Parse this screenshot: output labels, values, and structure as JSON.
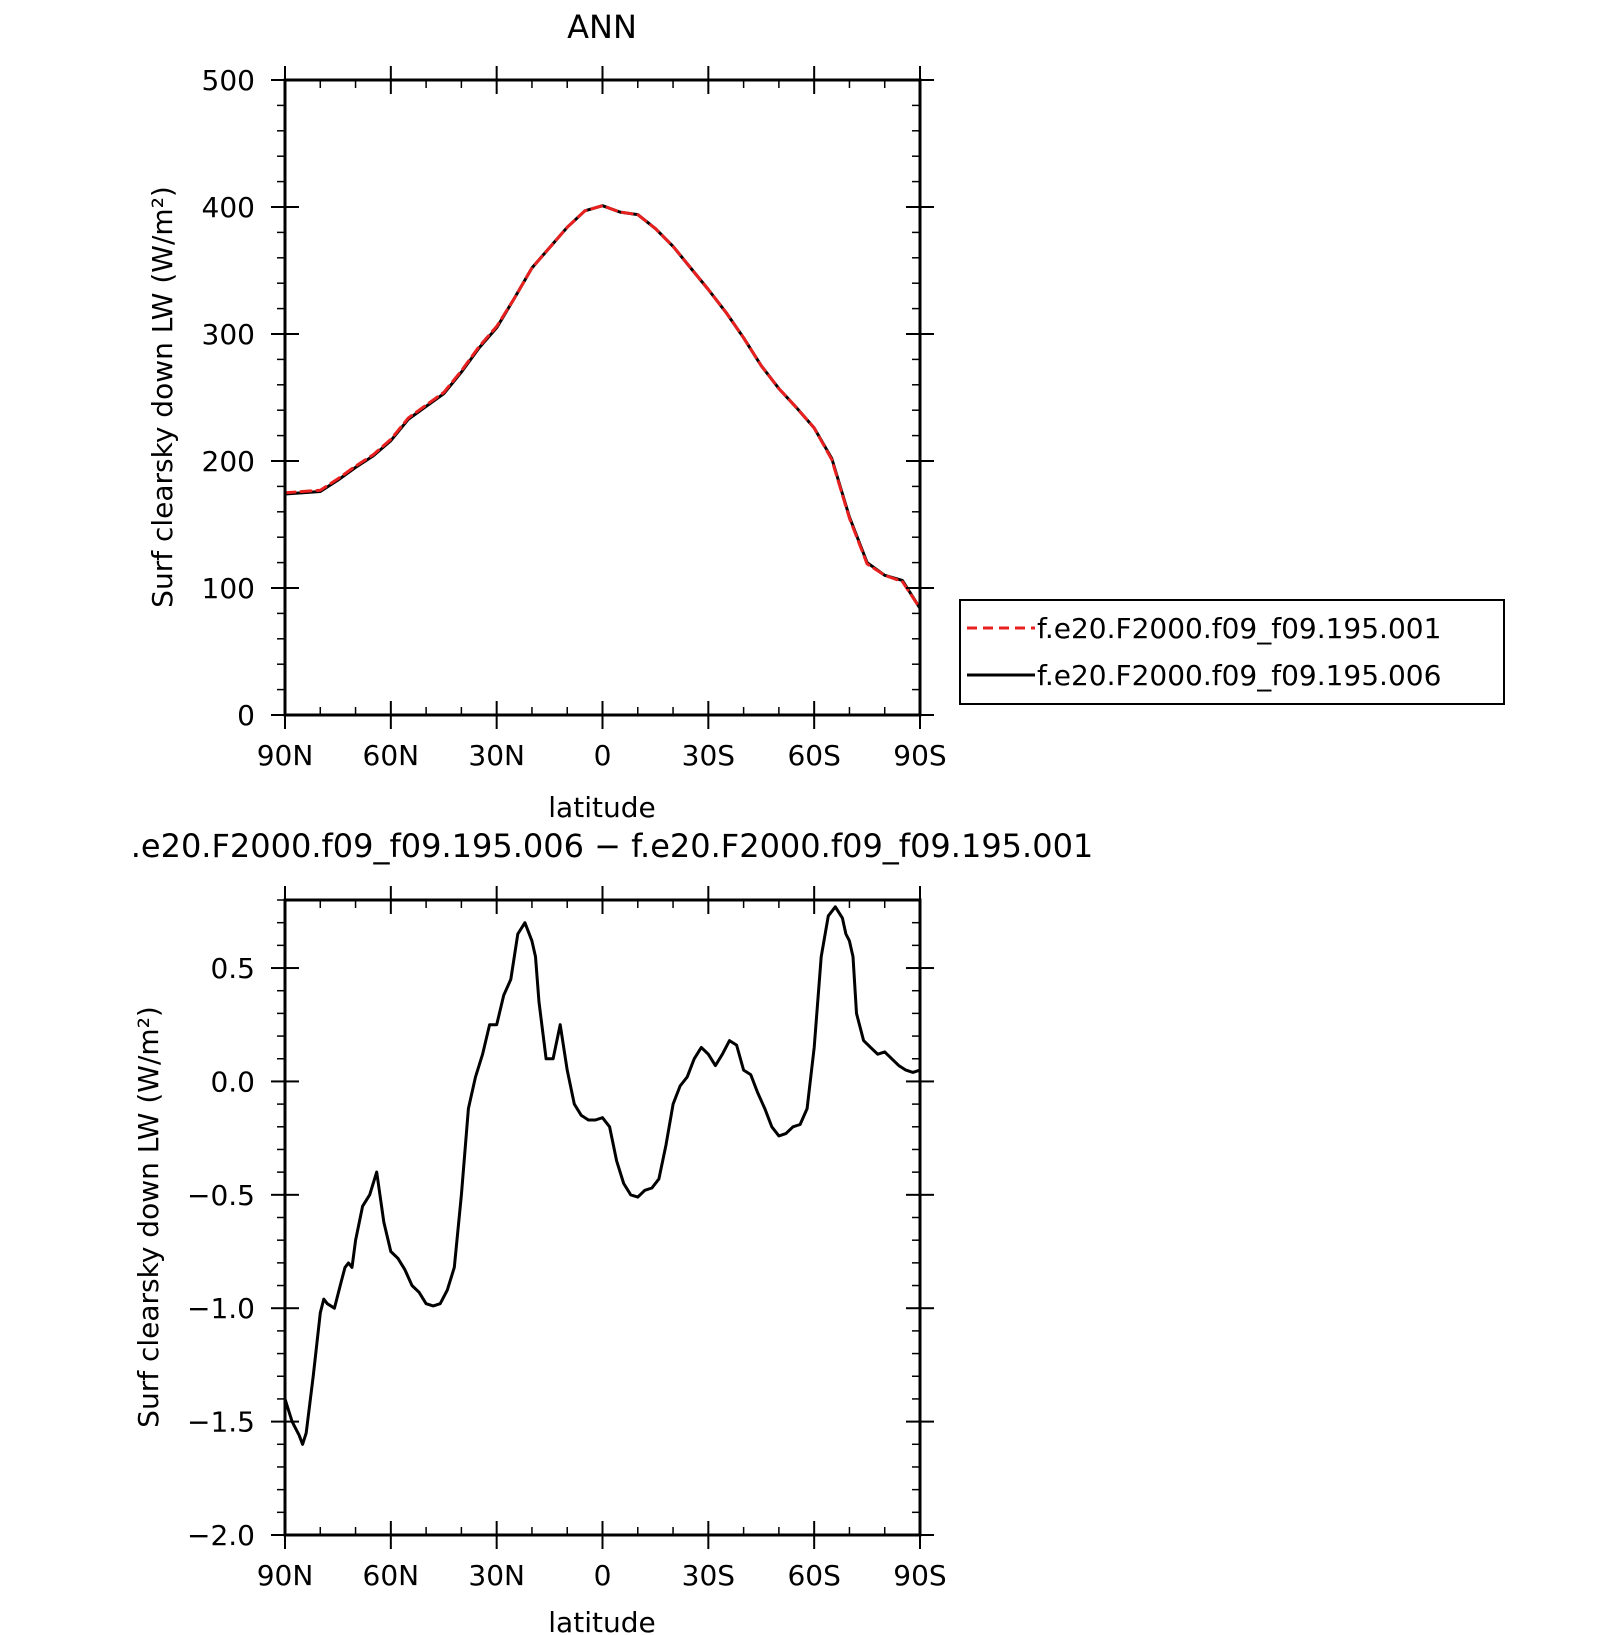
{
  "chart_data": [
    {
      "type": "line",
      "title": "ANN",
      "xlabel": "latitude",
      "ylabel": "Surf clearsky down LW (W/m²)",
      "xlim": [
        90,
        -90
      ],
      "ylim": [
        0,
        500
      ],
      "x_tick_values": [
        90,
        60,
        30,
        0,
        -30,
        -60,
        -90
      ],
      "x_tick_labels": [
        "90N",
        "60N",
        "30N",
        "0",
        "30S",
        "60S",
        "90S"
      ],
      "y_tick_values": [
        0,
        100,
        200,
        300,
        400,
        500
      ],
      "y_tick_labels": [
        "0",
        "100",
        "200",
        "300",
        "400",
        "500"
      ],
      "legend_position": "right",
      "grid": false,
      "x": [
        90,
        85,
        80,
        75,
        70,
        65,
        60,
        55,
        50,
        45,
        40,
        35,
        30,
        25,
        20,
        15,
        10,
        5,
        0,
        -5,
        -10,
        -15,
        -20,
        -25,
        -30,
        -35,
        -40,
        -45,
        -50,
        -55,
        -60,
        -65,
        -70,
        -75,
        -80,
        -85,
        -90
      ],
      "series": [
        {
          "name": "f.e20.F2000.f09_f09.195.001",
          "color": "#e8201f",
          "dash": "dashed",
          "values": [
            175,
            176,
            177,
            186,
            196,
            205,
            217,
            234,
            244,
            254,
            271,
            290,
            306,
            328,
            352,
            368,
            384,
            397,
            401,
            396,
            394,
            383,
            369,
            352,
            335,
            317,
            297,
            275,
            257,
            242,
            226,
            201,
            155,
            119,
            110,
            105,
            84
          ]
        },
        {
          "name": "f.e20.F2000.f09_f09.195.006",
          "color": "#000000",
          "dash": "solid",
          "values": [
            174,
            175,
            176,
            185,
            195,
            204,
            216,
            233,
            243,
            253,
            270,
            289,
            305,
            328,
            352,
            368,
            384,
            397,
            401,
            396,
            394,
            383,
            369,
            352,
            335,
            317,
            297,
            275,
            257,
            242,
            226,
            202,
            156,
            120,
            110,
            106,
            84
          ]
        }
      ]
    },
    {
      "type": "line",
      "title": ".e20.F2000.f09_f09.195.006 − f.e20.F2000.f09_f09.195.001",
      "xlabel": "latitude",
      "ylabel": "Surf clearsky down LW (W/m²)",
      "xlim": [
        90,
        -90
      ],
      "ylim": [
        -2.0,
        0.8
      ],
      "x_tick_values": [
        90,
        60,
        30,
        0,
        -30,
        -60,
        -90
      ],
      "x_tick_labels": [
        "90N",
        "60N",
        "30N",
        "0",
        "30S",
        "60S",
        "90S"
      ],
      "y_tick_values": [
        -2.0,
        -1.5,
        -1.0,
        -0.5,
        0.0,
        0.5
      ],
      "y_tick_labels": [
        "−2.0",
        "−1.5",
        "−1.0",
        "−0.5",
        "0.0",
        "0.5"
      ],
      "grid": false,
      "x": [
        90,
        88,
        86,
        85,
        84,
        82,
        80,
        79,
        78,
        76,
        74,
        73,
        72,
        71,
        70,
        68,
        66,
        64,
        62,
        60,
        58,
        56,
        54,
        52,
        50,
        48,
        46,
        44,
        42,
        40,
        38,
        36,
        34,
        32,
        30,
        28,
        26,
        24,
        22,
        20,
        19,
        18,
        16,
        14,
        12,
        10,
        8,
        6,
        4,
        2,
        0,
        -2,
        -4,
        -6,
        -8,
        -10,
        -12,
        -14,
        -16,
        -18,
        -20,
        -22,
        -24,
        -26,
        -28,
        -30,
        -32,
        -34,
        -36,
        -38,
        -40,
        -42,
        -44,
        -46,
        -48,
        -50,
        -52,
        -54,
        -56,
        -58,
        -60,
        -62,
        -64,
        -66,
        -68,
        -69,
        -70,
        -71,
        -72,
        -74,
        -76,
        -78,
        -80,
        -82,
        -84,
        -86,
        -88,
        -90
      ],
      "values": [
        -1.4,
        -1.5,
        -1.56,
        -1.6,
        -1.55,
        -1.3,
        -1.02,
        -0.96,
        -0.98,
        -1.0,
        -0.88,
        -0.82,
        -0.8,
        -0.82,
        -0.7,
        -0.55,
        -0.5,
        -0.4,
        -0.62,
        -0.75,
        -0.78,
        -0.83,
        -0.9,
        -0.93,
        -0.98,
        -0.99,
        -0.98,
        -0.92,
        -0.82,
        -0.5,
        -0.12,
        0.02,
        0.12,
        0.25,
        0.25,
        0.38,
        0.45,
        0.65,
        0.7,
        0.62,
        0.55,
        0.35,
        0.1,
        0.1,
        0.25,
        0.05,
        -0.1,
        -0.15,
        -0.17,
        -0.17,
        -0.16,
        -0.2,
        -0.35,
        -0.45,
        -0.5,
        -0.51,
        -0.48,
        -0.47,
        -0.43,
        -0.28,
        -0.1,
        -0.02,
        0.02,
        0.1,
        0.15,
        0.12,
        0.07,
        0.12,
        0.18,
        0.16,
        0.05,
        0.03,
        -0.05,
        -0.12,
        -0.2,
        -0.24,
        -0.23,
        -0.2,
        -0.19,
        -0.12,
        0.15,
        0.55,
        0.73,
        0.77,
        0.72,
        0.65,
        0.62,
        0.55,
        0.3,
        0.18,
        0.15,
        0.12,
        0.13,
        0.1,
        0.07,
        0.05,
        0.04,
        0.05
      ]
    }
  ]
}
